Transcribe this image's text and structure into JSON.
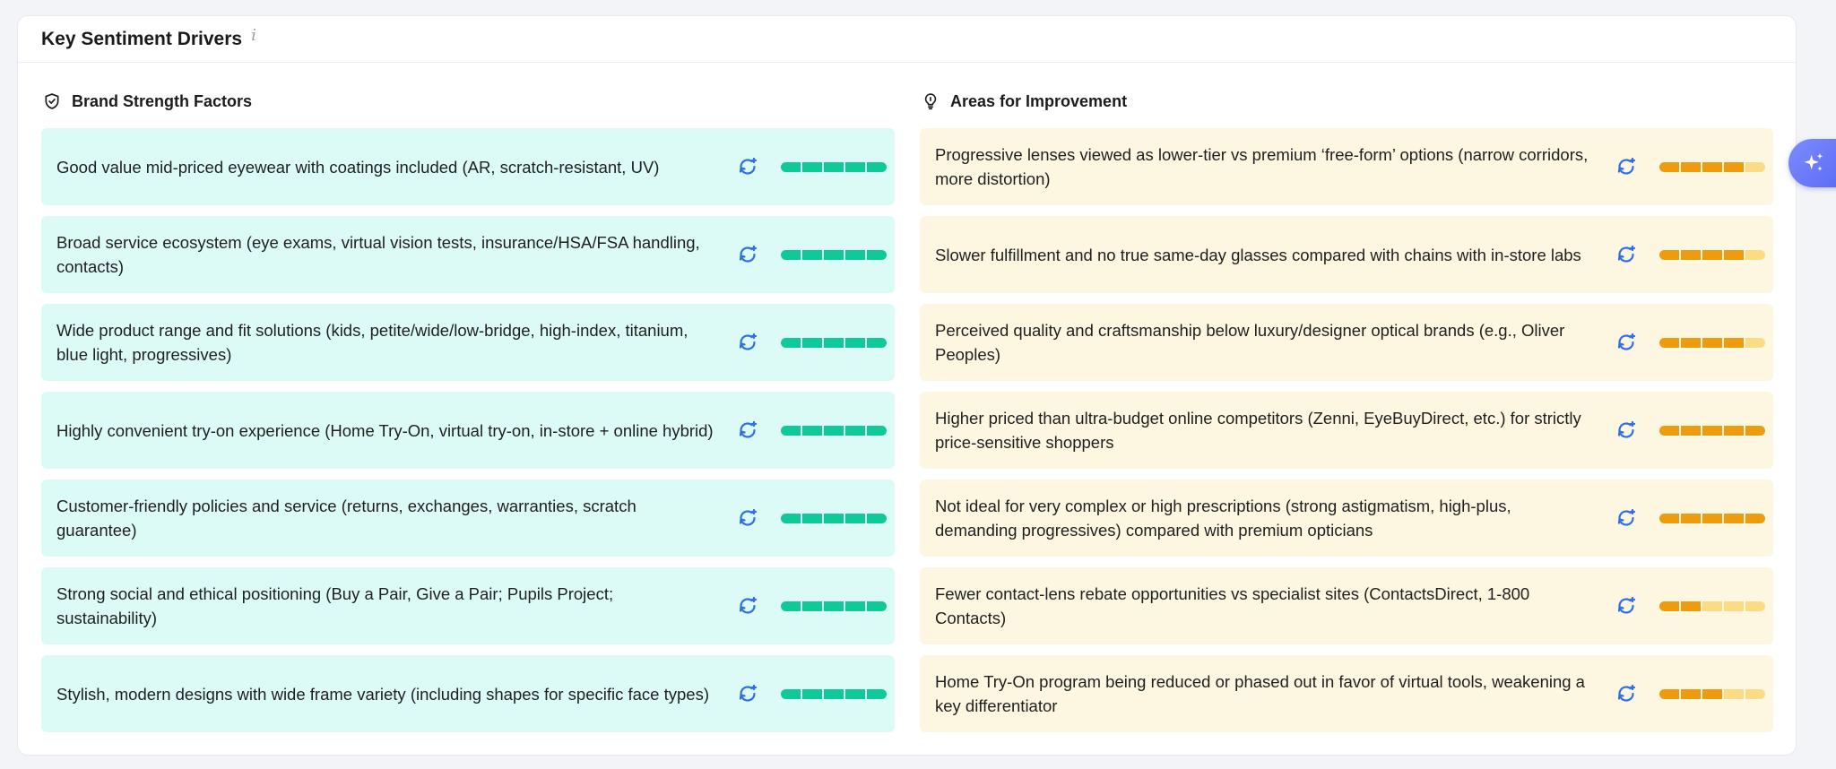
{
  "header": {
    "title": "Key Sentiment Drivers",
    "info_glyph": "i"
  },
  "colors": {
    "strength_bg": "#dcfbf6",
    "strength_fill": "#10c998",
    "improve_bg": "#fdf6e0",
    "improve_fill": "#ee9b0f",
    "improve_empty": "#fbdc85",
    "accent_blue": "#2f6fe8"
  },
  "strengths": {
    "title": "Brand Strength Factors",
    "icon": "shield-check-icon",
    "items": [
      {
        "text": "Good value mid-priced eyewear with coatings included (AR, scratch-resistant, UV)",
        "score": 5
      },
      {
        "text": "Broad service ecosystem (eye exams, virtual vision tests, insurance/HSA/FSA handling, contacts)",
        "score": 5
      },
      {
        "text": "Wide product range and fit solutions (kids, petite/wide/low-bridge, high-index, titanium, blue light, progressives)",
        "score": 5
      },
      {
        "text": "Highly convenient try-on experience (Home Try-On, virtual try-on, in-store + online hybrid)",
        "score": 5
      },
      {
        "text": "Customer-friendly policies and service (returns, exchanges, warranties, scratch guarantee)",
        "score": 5
      },
      {
        "text": "Strong social and ethical positioning (Buy a Pair, Give a Pair; Pupils Project; sustainability)",
        "score": 5
      },
      {
        "text": "Stylish, modern designs with wide frame variety (including shapes for specific face types)",
        "score": 5
      }
    ]
  },
  "improvements": {
    "title": "Areas for Improvement",
    "icon": "lightbulb-icon",
    "items": [
      {
        "text": "Progressive lenses viewed as lower-tier vs premium ‘free-form’ options (narrow corridors, more distortion)",
        "score": 4
      },
      {
        "text": "Slower fulfillment and no true same-day glasses compared with chains with in-store labs",
        "score": 4
      },
      {
        "text": "Perceived quality and craftsmanship below luxury/designer optical brands (e.g., Oliver Peoples)",
        "score": 4
      },
      {
        "text": "Higher priced than ultra-budget online competitors (Zenni, EyeBuyDirect, etc.) for strictly price-sensitive shoppers",
        "score": 5
      },
      {
        "text": "Not ideal for very complex or high prescriptions (strong astigmatism, high-plus, demanding progressives) compared with premium opticians",
        "score": 5
      },
      {
        "text": "Fewer contact-lens rebate opportunities vs specialist sites (ContactsDirect, 1-800 Contacts)",
        "score": 2
      },
      {
        "text": "Home Try-On program being reduced or phased out in favor of virtual tools, weakening a key differentiator",
        "score": 3
      }
    ]
  },
  "score_max": 5,
  "fab": {
    "icon": "sparkle-icon"
  }
}
